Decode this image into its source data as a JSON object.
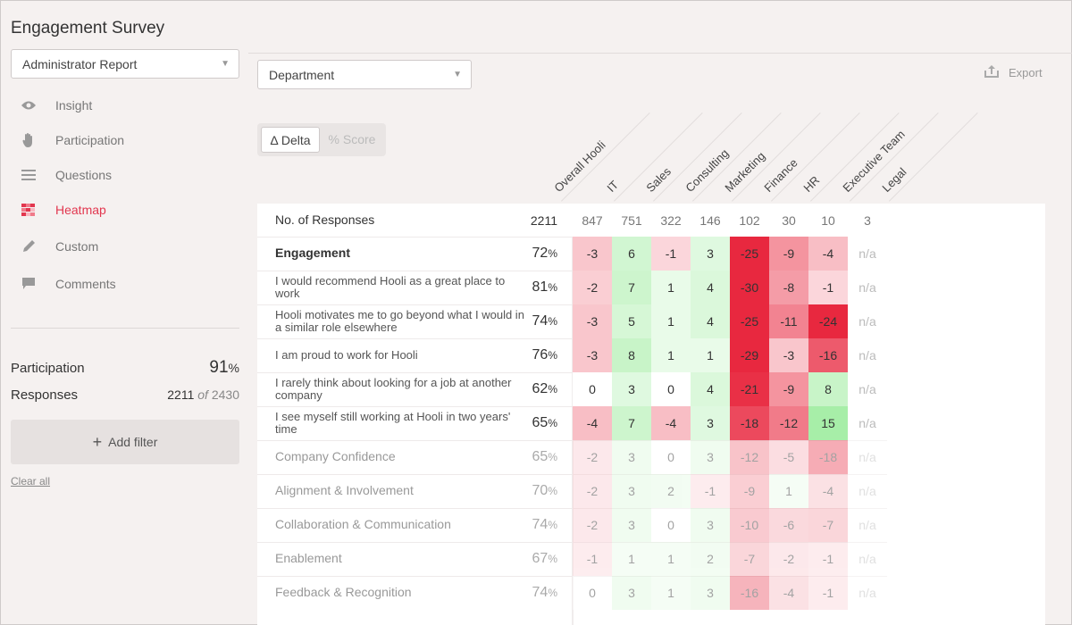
{
  "app": {
    "title": "Engagement Survey"
  },
  "report_select": {
    "value": "Administrator Report"
  },
  "nav": [
    {
      "label": "Insight",
      "icon": "eye-icon",
      "active": false
    },
    {
      "label": "Participation",
      "icon": "hand-icon",
      "active": false
    },
    {
      "label": "Questions",
      "icon": "list-icon",
      "active": false
    },
    {
      "label": "Heatmap",
      "icon": "heatmap-icon",
      "active": true
    },
    {
      "label": "Custom",
      "icon": "pencil-icon",
      "active": false
    },
    {
      "label": "Comments",
      "icon": "comment-icon",
      "active": false
    }
  ],
  "stats": {
    "participation_label": "Participation",
    "participation_value": "91",
    "participation_unit": "%",
    "responses_label": "Responses",
    "responses_count": "2211",
    "responses_of": "of",
    "responses_total": "2430"
  },
  "filters": {
    "add_label": "Add filter",
    "clear_label": "Clear all"
  },
  "dept_select": {
    "value": "Department"
  },
  "export": {
    "label": "Export"
  },
  "toggle": {
    "delta_label": "Δ Delta",
    "score_label": "% Score"
  },
  "columns": [
    "Overall Hooli",
    "IT",
    "Sales",
    "Consulting",
    "Marketing",
    "Finance",
    "HR",
    "Executive Team",
    "Legal"
  ],
  "responses_row": {
    "label": "No. of Responses",
    "overall": "2211",
    "values": [
      "847",
      "751",
      "322",
      "146",
      "102",
      "30",
      "10",
      "3"
    ]
  },
  "rows": [
    {
      "label": "Engagement",
      "score": "72",
      "unit": "%",
      "values": [
        "-3",
        "6",
        "-1",
        "3",
        "-25",
        "-9",
        "-4",
        "n/a"
      ],
      "bold": true,
      "faded": false
    },
    {
      "label": "I would recommend Hooli as a great place to work",
      "score": "81",
      "unit": "%",
      "values": [
        "-2",
        "7",
        "1",
        "4",
        "-30",
        "-8",
        "-1",
        "n/a"
      ],
      "bold": false,
      "faded": false
    },
    {
      "label": "Hooli motivates me to go beyond what I would in a similar role elsewhere",
      "score": "74",
      "unit": "%",
      "values": [
        "-3",
        "5",
        "1",
        "4",
        "-25",
        "-11",
        "-24",
        "n/a"
      ],
      "bold": false,
      "faded": false
    },
    {
      "label": "I am proud to work for Hooli",
      "score": "76",
      "unit": "%",
      "values": [
        "-3",
        "8",
        "1",
        "1",
        "-29",
        "-3",
        "-16",
        "n/a"
      ],
      "bold": false,
      "faded": false
    },
    {
      "label": "I rarely think about looking for a job at another company",
      "score": "62",
      "unit": "%",
      "values": [
        "0",
        "3",
        "0",
        "4",
        "-21",
        "-9",
        "8",
        "n/a"
      ],
      "bold": false,
      "faded": false
    },
    {
      "label": "I see myself still working at Hooli in two years' time",
      "score": "65",
      "unit": "%",
      "values": [
        "-4",
        "7",
        "-4",
        "3",
        "-18",
        "-12",
        "15",
        "n/a"
      ],
      "bold": false,
      "faded": false
    },
    {
      "label": "Company Confidence",
      "score": "65",
      "unit": "%",
      "values": [
        "-2",
        "3",
        "0",
        "3",
        "-12",
        "-5",
        "-18",
        "n/a"
      ],
      "bold": false,
      "faded": true
    },
    {
      "label": "Alignment & Involvement",
      "score": "70",
      "unit": "%",
      "values": [
        "-2",
        "3",
        "2",
        "-1",
        "-9",
        "1",
        "-4",
        "n/a"
      ],
      "bold": false,
      "faded": true
    },
    {
      "label": "Collaboration & Communication",
      "score": "74",
      "unit": "%",
      "values": [
        "-2",
        "3",
        "0",
        "3",
        "-10",
        "-6",
        "-7",
        "n/a"
      ],
      "bold": false,
      "faded": true
    },
    {
      "label": "Enablement",
      "score": "67",
      "unit": "%",
      "values": [
        "-1",
        "1",
        "1",
        "2",
        "-7",
        "-2",
        "-1",
        "n/a"
      ],
      "bold": false,
      "faded": true
    },
    {
      "label": "Feedback & Recognition",
      "score": "74",
      "unit": "%",
      "values": [
        "0",
        "3",
        "1",
        "3",
        "-16",
        "-4",
        "-1",
        "n/a"
      ],
      "bold": false,
      "faded": true
    }
  ],
  "colors": {
    "accent": "#e2374f",
    "negative": "#e8283f",
    "positive": "#a7eea8"
  }
}
